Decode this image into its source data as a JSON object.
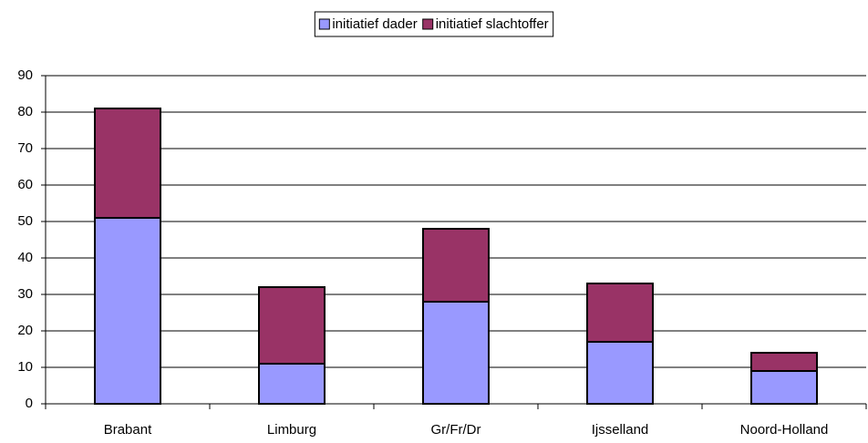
{
  "chart_data": {
    "type": "stacked_bar",
    "categories": [
      "Brabant",
      "Limburg",
      "Gr/Fr/Dr",
      "Ijsselland",
      "Noord-Holland"
    ],
    "series": [
      {
        "name": "initiatief dader",
        "color": "#9999ff",
        "values": [
          51,
          11,
          28,
          17,
          9
        ]
      },
      {
        "name": "initiatief slachtoffer",
        "color": "#993366",
        "values": [
          30,
          21,
          20,
          16,
          5
        ]
      }
    ],
    "ylim": [
      0,
      90
    ],
    "yticks": [
      0,
      10,
      20,
      30,
      40,
      50,
      60,
      70,
      80,
      90
    ],
    "grid": true,
    "legend": "top"
  }
}
